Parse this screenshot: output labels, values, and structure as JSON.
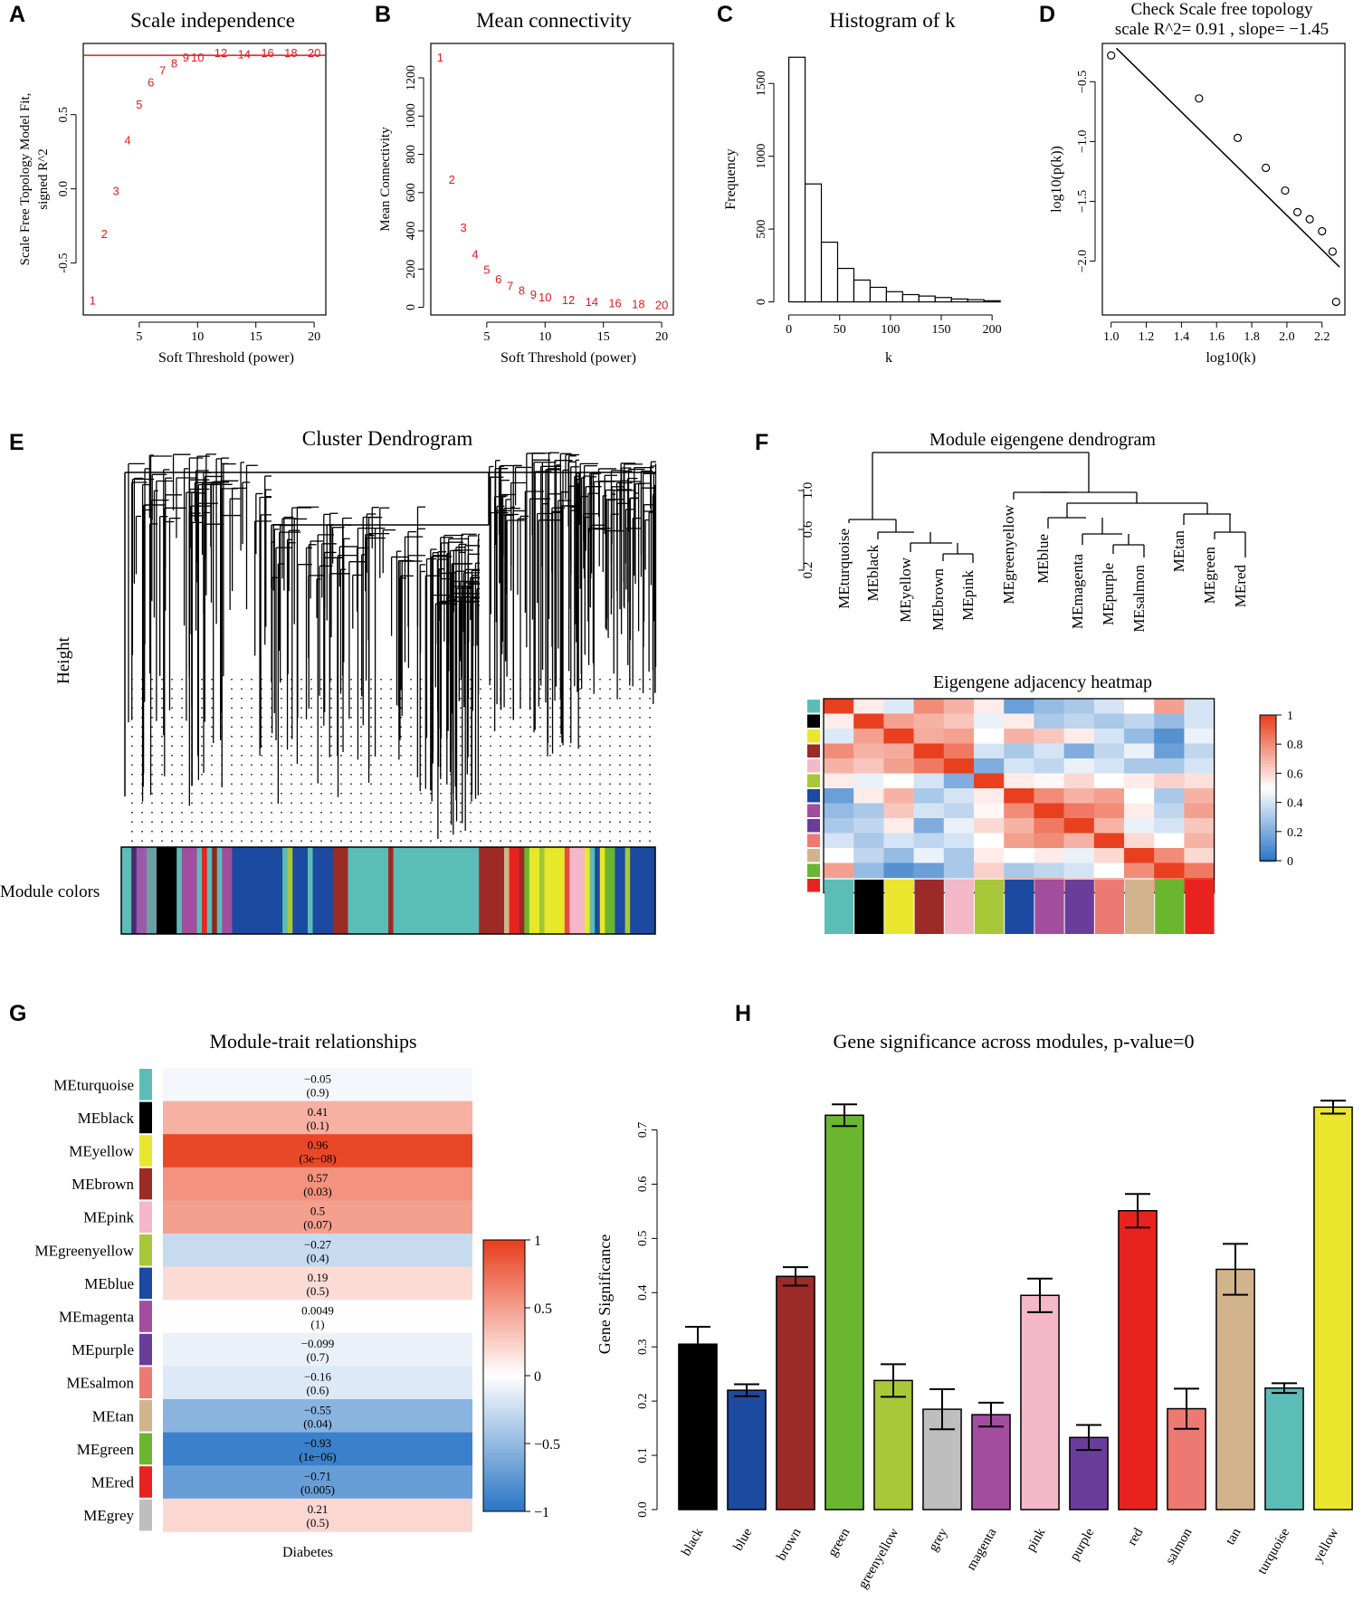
{
  "panel_labels": [
    "A",
    "B",
    "C",
    "D",
    "E",
    "F",
    "G",
    "H"
  ],
  "chart_data": [
    {
      "id": "A",
      "type": "scatter",
      "title": "Scale independence",
      "xlabel": "Soft Threshold (power)",
      "ylabel_lines": [
        "Scale Free Topology Model Fit,",
        "signed R^2"
      ],
      "xlim": [
        0.2,
        21
      ],
      "ylim": [
        -0.85,
        0.98
      ],
      "xticks": [
        5,
        10,
        15,
        20
      ],
      "yticks": [
        -0.5,
        0.0,
        0.5
      ],
      "ytick_labels": [
        "-0.5",
        "0.0",
        "0.5"
      ],
      "hline": 0.9,
      "hline_color": "#e41a1c",
      "points": [
        [
          1,
          -0.75
        ],
        [
          2,
          -0.3
        ],
        [
          3,
          -0.01
        ],
        [
          4,
          0.33
        ],
        [
          5,
          0.57
        ],
        [
          6,
          0.72
        ],
        [
          7,
          0.8
        ],
        [
          8,
          0.85
        ],
        [
          9,
          0.89
        ],
        [
          10,
          0.89
        ],
        [
          12,
          0.92
        ],
        [
          14,
          0.91
        ],
        [
          16,
          0.92
        ],
        [
          18,
          0.92
        ],
        [
          20,
          0.92
        ]
      ],
      "labels": [
        "1",
        "2",
        "3",
        "4",
        "5",
        "6",
        "7",
        "8",
        "9",
        "10",
        "12",
        "14",
        "16",
        "18",
        "20"
      ]
    },
    {
      "id": "B",
      "type": "scatter",
      "title": "Mean connectivity",
      "xlabel": "Soft Threshold (power)",
      "ylabel": "Mean Connectivity",
      "xlim": [
        0.2,
        21
      ],
      "ylim": [
        -40,
        1380
      ],
      "xticks": [
        5,
        10,
        15,
        20
      ],
      "yticks": [
        0,
        200,
        400,
        600,
        800,
        1000,
        1200
      ],
      "points": [
        [
          1,
          1310
        ],
        [
          2,
          670
        ],
        [
          3,
          420
        ],
        [
          4,
          280
        ],
        [
          5,
          200
        ],
        [
          6,
          150
        ],
        [
          7,
          115
        ],
        [
          8,
          90
        ],
        [
          9,
          70
        ],
        [
          10,
          55
        ],
        [
          12,
          40
        ],
        [
          14,
          30
        ],
        [
          16,
          25
        ],
        [
          18,
          20
        ],
        [
          20,
          15
        ]
      ],
      "labels": [
        "1",
        "2",
        "3",
        "4",
        "5",
        "6",
        "7",
        "8",
        "9",
        "10",
        "12",
        "14",
        "16",
        "18",
        "20"
      ]
    },
    {
      "id": "C",
      "type": "bar",
      "title": "Histogram of k",
      "xlabel": "k",
      "ylabel": "Frequency",
      "xlim": [
        -5,
        215
      ],
      "ylim": [
        -40,
        1750
      ],
      "xticks": [
        0,
        50,
        100,
        150,
        200
      ],
      "yticks": [
        0,
        500,
        1000,
        1500
      ],
      "bin_edges": [
        0,
        16,
        32,
        48,
        64,
        80,
        96,
        112,
        128,
        144,
        160,
        176,
        192,
        208
      ],
      "values": [
        1680,
        810,
        410,
        230,
        150,
        100,
        70,
        50,
        40,
        30,
        20,
        15,
        8
      ]
    },
    {
      "id": "D",
      "type": "scatter",
      "title_lines": [
        "Check Scale free topology",
        "scale R^2= 0.91 , slope= −1.45"
      ],
      "xlabel": "log10(k)",
      "ylabel": "log10(p(k))",
      "xlim": [
        0.95,
        2.33
      ],
      "ylim": [
        -2.45,
        -0.18
      ],
      "xticks": [
        1.0,
        1.2,
        1.4,
        1.6,
        1.8,
        2.0,
        2.2
      ],
      "yticks": [
        -0.5,
        -1.0,
        -1.5,
        -2.0
      ],
      "xtick_labels": [
        "1.0",
        "1.2",
        "1.4",
        "1.6",
        "1.8",
        "2.0",
        "2.2"
      ],
      "ytick_labels": [
        "−0.5",
        "−1.0",
        "−1.5",
        "−2.0"
      ],
      "points": [
        [
          1.0,
          -0.28
        ],
        [
          1.5,
          -0.64
        ],
        [
          1.72,
          -0.97
        ],
        [
          1.88,
          -1.22
        ],
        [
          1.99,
          -1.41
        ],
        [
          2.06,
          -1.59
        ],
        [
          2.13,
          -1.65
        ],
        [
          2.2,
          -1.75
        ],
        [
          2.26,
          -1.92
        ],
        [
          2.28,
          -2.34
        ]
      ],
      "fit_line": [
        [
          1.03,
          -0.22
        ],
        [
          2.3,
          -2.05
        ]
      ]
    },
    {
      "id": "E",
      "type": "table",
      "title": "Cluster Dendrogram",
      "ylabel": "Height",
      "row_label": "Module colors",
      "color_bar": [
        [
          "#5cbcb7",
          2
        ],
        [
          "#4b2a6f",
          1
        ],
        [
          "#9a5aa8",
          1
        ],
        [
          "#9a5aa8",
          1
        ],
        [
          "#6aa0a4",
          2
        ],
        [
          "#000000",
          4
        ],
        [
          "#5cbcb7",
          1
        ],
        [
          "#a24d9d",
          3
        ],
        [
          "#5cbcb7",
          1
        ],
        [
          "#e8231f",
          1
        ],
        [
          "#5cbcb7",
          1
        ],
        [
          "#8a2a25",
          1
        ],
        [
          "#5cbcb7",
          1
        ],
        [
          "#a24d9d",
          2
        ],
        [
          "#1b4aa0",
          10
        ],
        [
          "#5cbcb7",
          1
        ],
        [
          "#a8c83a",
          1
        ],
        [
          "#1b4aa0",
          3
        ],
        [
          "#5cbcb7",
          1
        ],
        [
          "#1b4aa0",
          4
        ],
        [
          "#9c2a27",
          3
        ],
        [
          "#5cbcb7",
          8
        ],
        [
          "#9c2a27",
          1
        ],
        [
          "#5cbcb7",
          17
        ],
        [
          "#9c2a27",
          5
        ],
        [
          "#d2b48c",
          1
        ],
        [
          "#e8231f",
          2
        ],
        [
          "#9c2a27",
          1
        ],
        [
          "#6ab62f",
          1
        ],
        [
          "#e8e82a",
          2
        ],
        [
          "#a2c63a",
          1
        ],
        [
          "#e8e82a",
          4
        ],
        [
          "#e84a4a",
          1
        ],
        [
          "#f4b8c8",
          3
        ],
        [
          "#e8e82a",
          1
        ],
        [
          "#5cbcb7",
          1
        ],
        [
          "#1b4aa0",
          1
        ],
        [
          "#e8e82a",
          1
        ],
        [
          "#6ab62f",
          2
        ],
        [
          "#1b4aa0",
          2
        ],
        [
          "#a8c83a",
          1
        ],
        [
          "#1b4aa0",
          5
        ]
      ]
    },
    {
      "id": "F",
      "type": "heatmap",
      "dendro_title": "Module eigengene dendrogram",
      "heatmap_title": "Eigengene adjacency heatmap",
      "y_ticks": [
        "0.2",
        "0.6",
        "1.0"
      ],
      "leaves": [
        "MEturquoise",
        "MEblack",
        "MEyellow",
        "MEbrown",
        "MEpink",
        "MEgreenyellow",
        "MEblue",
        "MEmagenta",
        "MEpurple",
        "MEsalmon",
        "MEtan",
        "MEgreen",
        "MEred"
      ],
      "colors": [
        "#5cbcb7",
        "#000000",
        "#eae62e",
        "#9c2a27",
        "#f4b8c8",
        "#a8c83a",
        "#1b4aa0",
        "#a24d9d",
        "#6a3d9a",
        "#ec7a72",
        "#d2b48c",
        "#6ab62f",
        "#e8231f"
      ],
      "legend_ticks": [
        "1",
        "0.8",
        "0.6",
        "0.4",
        "0.2",
        "0"
      ],
      "matrix": [
        [
          1.0,
          0.55,
          0.42,
          0.8,
          0.7,
          0.55,
          0.15,
          0.25,
          0.3,
          0.4,
          0.5,
          0.75,
          0.4
        ],
        [
          0.55,
          1.0,
          0.75,
          0.7,
          0.65,
          0.45,
          0.55,
          0.3,
          0.35,
          0.3,
          0.35,
          0.25,
          0.4
        ],
        [
          0.42,
          0.75,
          1.0,
          0.72,
          0.75,
          0.5,
          0.7,
          0.65,
          0.55,
          0.4,
          0.25,
          0.1,
          0.45
        ],
        [
          0.8,
          0.7,
          0.72,
          1.0,
          0.85,
          0.4,
          0.3,
          0.4,
          0.2,
          0.35,
          0.45,
          0.15,
          0.35
        ],
        [
          0.7,
          0.65,
          0.75,
          0.85,
          1.0,
          0.2,
          0.4,
          0.35,
          0.45,
          0.4,
          0.3,
          0.3,
          0.4
        ],
        [
          0.55,
          0.45,
          0.5,
          0.4,
          0.2,
          1.0,
          0.55,
          0.52,
          0.6,
          0.5,
          0.55,
          0.62,
          0.58
        ],
        [
          0.15,
          0.55,
          0.7,
          0.3,
          0.4,
          0.55,
          1.0,
          0.8,
          0.7,
          0.75,
          0.5,
          0.3,
          0.7
        ],
        [
          0.25,
          0.3,
          0.65,
          0.4,
          0.35,
          0.52,
          0.8,
          1.0,
          0.85,
          0.8,
          0.55,
          0.35,
          0.75
        ],
        [
          0.3,
          0.35,
          0.55,
          0.2,
          0.45,
          0.6,
          0.7,
          0.85,
          1.0,
          0.7,
          0.45,
          0.4,
          0.65
        ],
        [
          0.4,
          0.3,
          0.4,
          0.35,
          0.4,
          0.5,
          0.75,
          0.8,
          0.7,
          1.0,
          0.6,
          0.5,
          0.7
        ],
        [
          0.5,
          0.35,
          0.25,
          0.45,
          0.3,
          0.55,
          0.5,
          0.55,
          0.45,
          0.6,
          1.0,
          0.8,
          0.6
        ],
        [
          0.75,
          0.25,
          0.1,
          0.15,
          0.3,
          0.62,
          0.3,
          0.35,
          0.4,
          0.5,
          0.8,
          1.0,
          0.85
        ],
        [
          0.4,
          0.4,
          0.45,
          0.35,
          0.4,
          0.58,
          0.7,
          0.75,
          0.65,
          0.7,
          0.6,
          0.85,
          1.0
        ]
      ]
    },
    {
      "id": "G",
      "type": "heatmap",
      "title": "Module-trait relationships",
      "column": "Diabetes",
      "legend_ticks": [
        "1",
        "0.5",
        "0",
        "−0.5",
        "−1"
      ],
      "rows": [
        {
          "module": "MEturquoise",
          "color": "#5cbcb7",
          "r": -0.05,
          "r_label": "−0.05",
          "p_label": "(0.9)"
        },
        {
          "module": "MEblack",
          "color": "#000000",
          "r": 0.41,
          "r_label": "0.41",
          "p_label": "(0.1)"
        },
        {
          "module": "MEyellow",
          "color": "#eae62e",
          "r": 0.96,
          "r_label": "0.96",
          "p_label": "(3e−08)"
        },
        {
          "module": "MEbrown",
          "color": "#9c2a27",
          "r": 0.57,
          "r_label": "0.57",
          "p_label": "(0.03)"
        },
        {
          "module": "MEpink",
          "color": "#f4b8c8",
          "r": 0.5,
          "r_label": "0.5",
          "p_label": "(0.07)"
        },
        {
          "module": "MEgreenyellow",
          "color": "#a8c83a",
          "r": -0.27,
          "r_label": "−0.27",
          "p_label": "(0.4)"
        },
        {
          "module": "MEblue",
          "color": "#1b4aa0",
          "r": 0.19,
          "r_label": "0.19",
          "p_label": "(0.5)"
        },
        {
          "module": "MEmagenta",
          "color": "#a24d9d",
          "r": 0.0049,
          "r_label": "0.0049",
          "p_label": "(1)"
        },
        {
          "module": "MEpurple",
          "color": "#6a3d9a",
          "r": -0.099,
          "r_label": "−0.099",
          "p_label": "(0.7)"
        },
        {
          "module": "MEsalmon",
          "color": "#ec7a72",
          "r": -0.16,
          "r_label": "−0.16",
          "p_label": "(0.6)"
        },
        {
          "module": "MEtan",
          "color": "#d2b48c",
          "r": -0.55,
          "r_label": "−0.55",
          "p_label": "(0.04)"
        },
        {
          "module": "MEgreen",
          "color": "#6ab62f",
          "r": -0.93,
          "r_label": "−0.93",
          "p_label": "(1e−06)"
        },
        {
          "module": "MEred",
          "color": "#e8231f",
          "r": -0.71,
          "r_label": "−0.71",
          "p_label": "(0.005)"
        },
        {
          "module": "MEgrey",
          "color": "#bebebe",
          "r": 0.21,
          "r_label": "0.21",
          "p_label": "(0.5)"
        }
      ]
    },
    {
      "id": "H",
      "type": "bar",
      "title": "Gene significance across modules, p-value=0",
      "ylabel": "Gene Significance",
      "ylim": [
        0,
        0.75
      ],
      "yticks": [
        0.0,
        0.1,
        0.2,
        0.3,
        0.4,
        0.5,
        0.6,
        0.7
      ],
      "ytick_labels": [
        "0.0",
        "0.1",
        "0.2",
        "0.3",
        "0.4",
        "0.5",
        "0.6",
        "0.7"
      ],
      "categories": [
        "black",
        "blue",
        "brown",
        "green",
        "greenyellow",
        "grey",
        "magenta",
        "pink",
        "purple",
        "red",
        "salmon",
        "tan",
        "turquoise",
        "yellow"
      ],
      "colors": [
        "#000000",
        "#1b4aa0",
        "#9c2a27",
        "#6ab62f",
        "#a8c83a",
        "#bebebe",
        "#a24d9d",
        "#f4b8c8",
        "#6a3d9a",
        "#e8231f",
        "#ec7a72",
        "#d2b48c",
        "#5cbcb7",
        "#eae62e"
      ],
      "values": [
        0.305,
        0.22,
        0.43,
        0.727,
        0.238,
        0.185,
        0.175,
        0.395,
        0.133,
        0.551,
        0.186,
        0.443,
        0.224,
        0.742
      ],
      "errors": [
        0.032,
        0.011,
        0.017,
        0.02,
        0.03,
        0.037,
        0.022,
        0.031,
        0.023,
        0.031,
        0.037,
        0.047,
        0.009,
        0.012
      ]
    }
  ]
}
